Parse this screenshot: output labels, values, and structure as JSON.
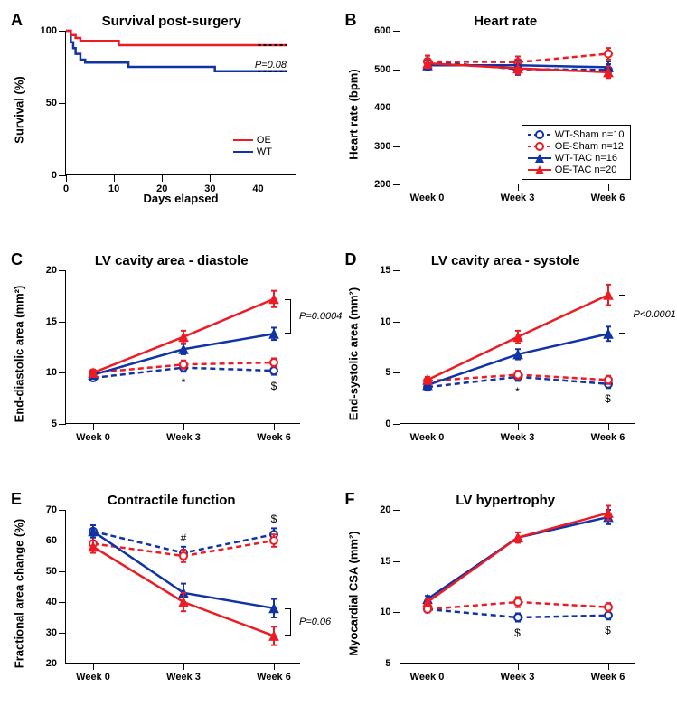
{
  "colors": {
    "oe": "#ed1c24",
    "wt": "#1033a6",
    "axis": "#000000",
    "bg": "#ffffff"
  },
  "legend_main": {
    "items": [
      {
        "label": "WT-Sham n=10",
        "color": "#1033a6",
        "dash": true,
        "marker": "open-circle"
      },
      {
        "label": "OE-Sham n=12",
        "color": "#ed1c24",
        "dash": true,
        "marker": "open-circle"
      },
      {
        "label": "WT-TAC n=16",
        "color": "#1033a6",
        "dash": false,
        "marker": "filled-triangle"
      },
      {
        "label": "OE-TAC n=20",
        "color": "#ed1c24",
        "dash": false,
        "marker": "filled-triangle"
      }
    ]
  },
  "panels": {
    "A": {
      "letter": "A",
      "title": "Survival post-surgery",
      "ylabel": "Survival (%)",
      "xlabel": "Days elapsed",
      "ylim": [
        0,
        100
      ],
      "yticks": [
        0,
        50,
        100
      ],
      "xlim": [
        0,
        48
      ],
      "xticks": [
        0,
        10,
        20,
        30,
        40
      ],
      "pval": "P=0.08",
      "legend": [
        {
          "label": "OE",
          "color": "#ed1c24"
        },
        {
          "label": "WT",
          "color": "#1033a6"
        }
      ],
      "series": {
        "OE": {
          "color": "#ed1c24",
          "steps": [
            [
              0,
              100
            ],
            [
              1,
              97
            ],
            [
              2,
              95
            ],
            [
              3,
              93
            ],
            [
              11,
              90
            ],
            [
              40,
              90
            ],
            [
              46,
              90
            ]
          ],
          "censor_from": 40
        },
        "WT": {
          "color": "#1033a6",
          "steps": [
            [
              0,
              100
            ],
            [
              1,
              92
            ],
            [
              1.5,
              88
            ],
            [
              2,
              84
            ],
            [
              3,
              80
            ],
            [
              4,
              78
            ],
            [
              13,
              75
            ],
            [
              31,
              72
            ],
            [
              40,
              72
            ],
            [
              46,
              72
            ]
          ],
          "censor_from": 40
        }
      }
    },
    "B": {
      "letter": "B",
      "title": "Heart rate",
      "ylabel": "Heart rate (bpm)",
      "xlabel": "",
      "ylim": [
        200,
        600
      ],
      "yticks": [
        200,
        300,
        400,
        500,
        600
      ],
      "xcats": [
        "Week 0",
        "Week 3",
        "Week 6"
      ],
      "series": {
        "WT-Sham": {
          "color": "#1033a6",
          "dash": true,
          "marker": "open",
          "y": [
            520,
            500,
            498
          ],
          "err": [
            15,
            15,
            15
          ]
        },
        "OE-Sham": {
          "color": "#ed1c24",
          "dash": true,
          "marker": "open",
          "y": [
            520,
            518,
            540
          ],
          "err": [
            15,
            15,
            15
          ]
        },
        "WT-TAC": {
          "color": "#1033a6",
          "dash": false,
          "marker": "tri",
          "y": [
            510,
            510,
            505
          ],
          "err": [
            12,
            12,
            15
          ]
        },
        "OE-TAC": {
          "color": "#ed1c24",
          "dash": false,
          "marker": "tri",
          "y": [
            515,
            502,
            492
          ],
          "err": [
            12,
            15,
            15
          ]
        }
      }
    },
    "C": {
      "letter": "C",
      "title": "LV cavity area - diastole",
      "ylabel": "End-diastolic area (mm²)",
      "xlabel": "",
      "ylim": [
        5,
        20
      ],
      "yticks": [
        5,
        10,
        15,
        20
      ],
      "xcats": [
        "Week 0",
        "Week 3",
        "Week 6"
      ],
      "pval": "P=0.0004",
      "annots": [
        {
          "x": 1,
          "sym": "*"
        },
        {
          "x": 2,
          "sym": "$"
        }
      ],
      "series": {
        "WT-Sham": {
          "color": "#1033a6",
          "dash": true,
          "marker": "open",
          "y": [
            9.5,
            10.5,
            10.2
          ],
          "err": [
            0.3,
            0.4,
            0.4
          ]
        },
        "OE-Sham": {
          "color": "#ed1c24",
          "dash": true,
          "marker": "open",
          "y": [
            10.0,
            10.8,
            11.0
          ],
          "err": [
            0.3,
            0.4,
            0.4
          ]
        },
        "WT-TAC": {
          "color": "#1033a6",
          "dash": false,
          "marker": "tri",
          "y": [
            9.8,
            12.3,
            13.8
          ],
          "err": [
            0.3,
            0.5,
            0.6
          ]
        },
        "OE-TAC": {
          "color": "#ed1c24",
          "dash": false,
          "marker": "tri",
          "y": [
            10.0,
            13.5,
            17.2
          ],
          "err": [
            0.3,
            0.6,
            0.8
          ]
        }
      }
    },
    "D": {
      "letter": "D",
      "title": "LV cavity area - systole",
      "ylabel": "End-systolic area (mm²)",
      "xlabel": "",
      "ylim": [
        0,
        15
      ],
      "yticks": [
        0,
        5,
        10,
        15
      ],
      "xcats": [
        "Week 0",
        "Week 3",
        "Week 6"
      ],
      "pval": "P<0.0001",
      "annots": [
        {
          "x": 1,
          "sym": "*"
        },
        {
          "x": 2,
          "sym": "$"
        }
      ],
      "series": {
        "WT-Sham": {
          "color": "#1033a6",
          "dash": true,
          "marker": "open",
          "y": [
            3.6,
            4.6,
            3.9
          ],
          "err": [
            0.3,
            0.4,
            0.4
          ]
        },
        "OE-Sham": {
          "color": "#ed1c24",
          "dash": true,
          "marker": "open",
          "y": [
            4.2,
            4.8,
            4.3
          ],
          "err": [
            0.3,
            0.4,
            0.4
          ]
        },
        "WT-TAC": {
          "color": "#1033a6",
          "dash": false,
          "marker": "tri",
          "y": [
            3.8,
            6.8,
            8.8
          ],
          "err": [
            0.3,
            0.5,
            0.7
          ]
        },
        "OE-TAC": {
          "color": "#ed1c24",
          "dash": false,
          "marker": "tri",
          "y": [
            4.3,
            8.5,
            12.6
          ],
          "err": [
            0.3,
            0.6,
            1.0
          ]
        }
      }
    },
    "E": {
      "letter": "E",
      "title": "Contractile function",
      "ylabel": "Fractional area change (%)",
      "xlabel": "",
      "ylim": [
        20,
        70
      ],
      "yticks": [
        20,
        30,
        40,
        50,
        60,
        70
      ],
      "xcats": [
        "Week 0",
        "Week 3",
        "Week 6"
      ],
      "pval": "P=0.06",
      "annots": [
        {
          "x": 1,
          "sym": "#",
          "ypos": "high"
        },
        {
          "x": 2,
          "sym": "$",
          "ypos": "high"
        }
      ],
      "series": {
        "WT-Sham": {
          "color": "#1033a6",
          "dash": true,
          "marker": "open",
          "y": [
            63,
            56,
            62
          ],
          "err": [
            2,
            2,
            2
          ]
        },
        "OE-Sham": {
          "color": "#ed1c24",
          "dash": true,
          "marker": "open",
          "y": [
            59,
            55,
            60
          ],
          "err": [
            2,
            2,
            2
          ]
        },
        "WT-TAC": {
          "color": "#1033a6",
          "dash": false,
          "marker": "tri",
          "y": [
            63,
            43,
            38
          ],
          "err": [
            2,
            3,
            3
          ]
        },
        "OE-TAC": {
          "color": "#ed1c24",
          "dash": false,
          "marker": "tri",
          "y": [
            58,
            40,
            29
          ],
          "err": [
            2,
            3,
            3
          ]
        }
      }
    },
    "F": {
      "letter": "F",
      "title": "LV hypertrophy",
      "ylabel": "Myocardial CSA (mm²)",
      "xlabel": "",
      "ylim": [
        5,
        20
      ],
      "yticks": [
        5,
        10,
        15,
        20
      ],
      "xcats": [
        "Week 0",
        "Week 3",
        "Week 6"
      ],
      "annots": [
        {
          "x": 1,
          "sym": "$"
        },
        {
          "x": 2,
          "sym": "$"
        }
      ],
      "series": {
        "WT-Sham": {
          "color": "#1033a6",
          "dash": true,
          "marker": "open",
          "y": [
            10.3,
            9.5,
            9.7
          ],
          "err": [
            0.3,
            0.4,
            0.4
          ]
        },
        "OE-Sham": {
          "color": "#ed1c24",
          "dash": true,
          "marker": "open",
          "y": [
            10.3,
            11.0,
            10.5
          ],
          "err": [
            0.3,
            0.5,
            0.4
          ]
        },
        "WT-TAC": {
          "color": "#1033a6",
          "dash": false,
          "marker": "tri",
          "y": [
            11.3,
            17.3,
            19.3
          ],
          "err": [
            0.3,
            0.5,
            0.7
          ]
        },
        "OE-TAC": {
          "color": "#ed1c24",
          "dash": false,
          "marker": "tri",
          "y": [
            11.0,
            17.3,
            19.7
          ],
          "err": [
            0.3,
            0.5,
            0.7
          ]
        }
      }
    }
  }
}
